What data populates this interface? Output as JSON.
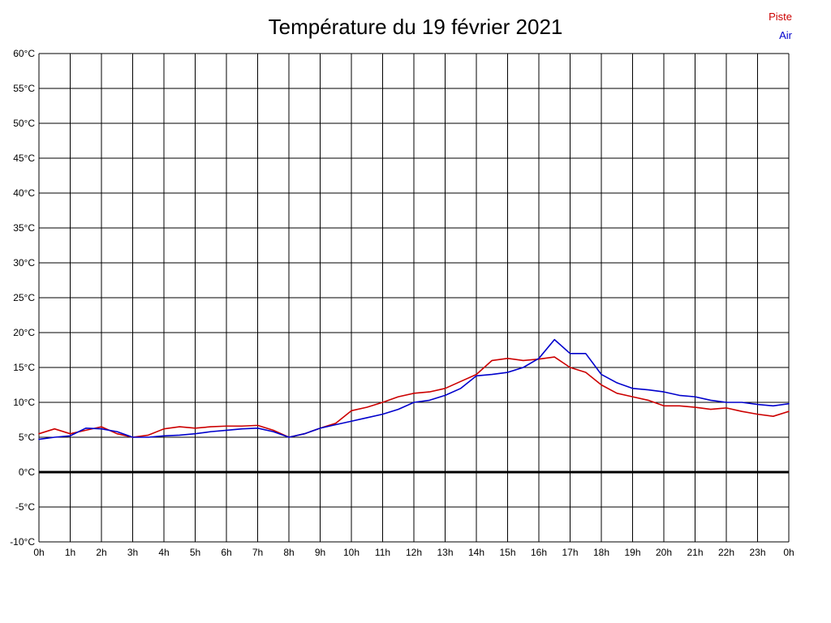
{
  "title": "Température du 19 février 2021",
  "legend": {
    "piste_label": "Piste",
    "air_label": "Air"
  },
  "colors": {
    "piste": "#cc0000",
    "air": "#0000cc",
    "grid": "#000000",
    "zero_line": "#000000",
    "background": "#ffffff"
  },
  "chart_data": {
    "type": "line",
    "title": "Température du 19 février 2021",
    "xlabel": "",
    "ylabel": "",
    "xlim": [
      0,
      24
    ],
    "ylim": [
      -10,
      60
    ],
    "grid": true,
    "legend_position": "top-right",
    "x_ticks": [
      "0h",
      "1h",
      "2h",
      "3h",
      "4h",
      "5h",
      "6h",
      "7h",
      "8h",
      "9h",
      "10h",
      "11h",
      "12h",
      "13h",
      "14h",
      "15h",
      "16h",
      "17h",
      "18h",
      "19h",
      "20h",
      "21h",
      "22h",
      "23h",
      "0h"
    ],
    "y_ticks": [
      "60°C",
      "55°C",
      "50°C",
      "45°C",
      "40°C",
      "35°C",
      "30°C",
      "25°C",
      "20°C",
      "15°C",
      "10°C",
      "5°C",
      "0°C",
      "-5°C",
      "-10°C"
    ],
    "x": [
      0,
      0.5,
      1,
      1.5,
      2,
      2.5,
      3,
      3.5,
      4,
      4.5,
      5,
      5.5,
      6,
      6.5,
      7,
      7.5,
      8,
      8.5,
      9,
      9.5,
      10,
      10.5,
      11,
      11.5,
      12,
      12.5,
      13,
      13.5,
      14,
      14.5,
      15,
      15.5,
      16,
      16.5,
      17,
      17.5,
      18,
      18.5,
      19,
      19.5,
      20,
      20.5,
      21,
      21.5,
      22,
      22.5,
      23,
      23.5,
      24
    ],
    "series": [
      {
        "name": "Piste",
        "color": "#cc0000",
        "values": [
          5.5,
          6.2,
          5.5,
          6,
          6.5,
          5.5,
          5,
          5.3,
          6.2,
          6.5,
          6.3,
          6.5,
          6.6,
          6.6,
          6.7,
          6,
          5,
          5.5,
          6.3,
          7,
          8.8,
          9.3,
          10,
          10.8,
          11.3,
          11.5,
          12,
          13,
          14,
          16,
          16.3,
          16,
          16.2,
          16.5,
          15,
          14.3,
          12.5,
          11.3,
          10.8,
          10.3,
          9.5,
          9.5,
          9.3,
          9,
          9.2,
          8.7,
          8.3,
          8,
          8.7
        ]
      },
      {
        "name": "Air",
        "color": "#0000cc",
        "values": [
          4.7,
          5,
          5.2,
          6.3,
          6.2,
          5.8,
          5,
          5,
          5.2,
          5.3,
          5.5,
          5.8,
          6,
          6.2,
          6.3,
          5.8,
          5,
          5.5,
          6.3,
          6.8,
          7.3,
          7.8,
          8.3,
          9,
          10,
          10.3,
          11,
          12,
          13.8,
          14,
          14.3,
          15,
          16.3,
          19,
          17,
          17,
          14,
          12.8,
          12,
          11.8,
          11.5,
          11,
          10.8,
          10.3,
          10,
          10,
          9.7,
          9.5,
          9.8
        ]
      }
    ]
  }
}
